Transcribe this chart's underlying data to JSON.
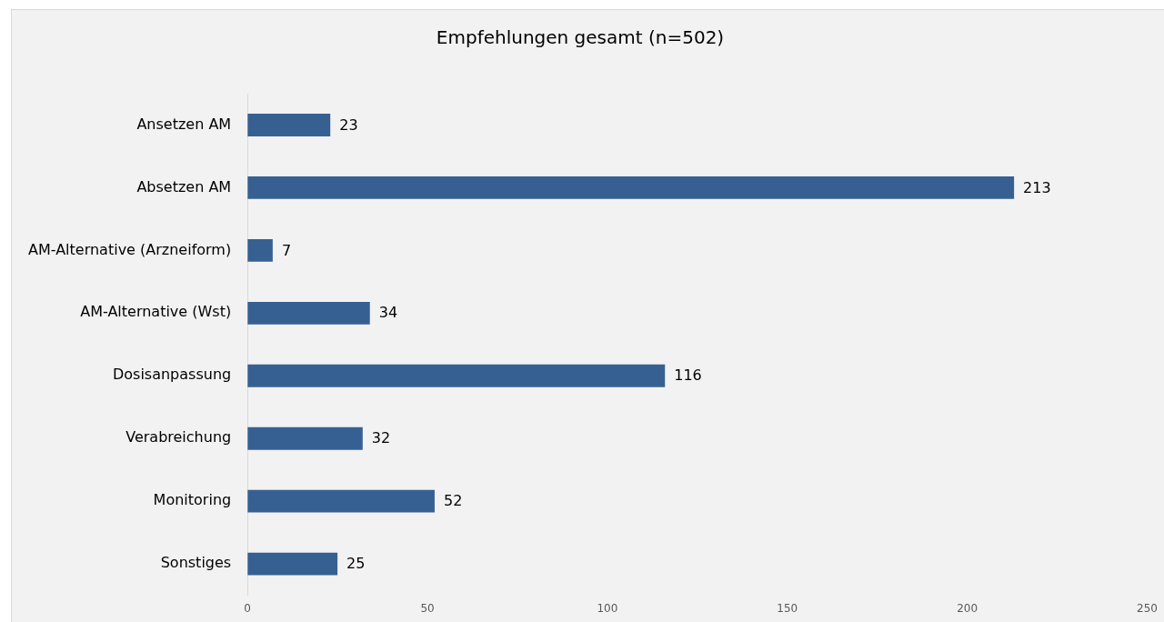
{
  "chart_data": {
    "type": "bar",
    "orientation": "horizontal",
    "title": "Empfehlungen gesamt (n=502)",
    "categories": [
      "Ansetzen AM",
      "Absetzen AM",
      "AM-Alternative (Arzneiform)",
      "AM-Alternative (Wst)",
      "Dosisanpassung",
      "Verabreichung",
      "Monitoring",
      "Sonstiges"
    ],
    "values": [
      23,
      213,
      7,
      34,
      116,
      32,
      52,
      25
    ],
    "color": "#366092",
    "xlim": [
      0,
      250
    ],
    "xticks": [
      0,
      50,
      100,
      150,
      200,
      250
    ],
    "grid": false,
    "legend": false,
    "data_labels": true
  }
}
